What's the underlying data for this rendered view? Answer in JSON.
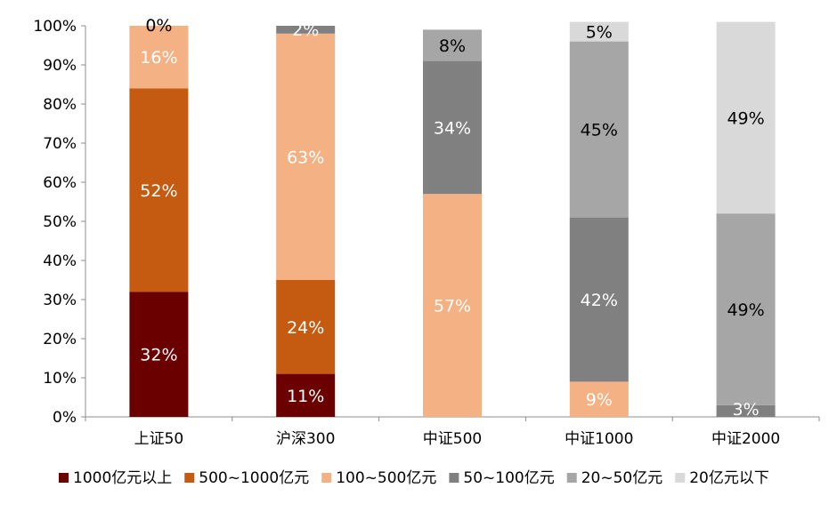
{
  "chart_data": {
    "type": "bar",
    "stacked": true,
    "percent": true,
    "categories": [
      "上证50",
      "沪深300",
      "中证500",
      "中证1000",
      "中证2000"
    ],
    "ylim": [
      0,
      100
    ],
    "yticks": [
      "0%",
      "10%",
      "20%",
      "30%",
      "40%",
      "50%",
      "60%",
      "70%",
      "80%",
      "90%",
      "100%"
    ],
    "grid": false,
    "legend_position": "bottom",
    "series": [
      {
        "name": "1000亿元以上",
        "color": "#6B0000",
        "label_color": "#ffffff",
        "values": [
          32,
          11,
          0,
          0,
          0
        ],
        "labels": [
          "32%",
          "11%",
          "",
          "",
          ""
        ]
      },
      {
        "name": "500~1000亿元",
        "color": "#C55A11",
        "label_color": "#ffffff",
        "values": [
          52,
          24,
          0,
          0,
          0
        ],
        "labels": [
          "52%",
          "24%",
          "",
          "",
          ""
        ]
      },
      {
        "name": "100~500亿元",
        "color": "#F4B183",
        "label_color": "#ffffff",
        "values": [
          16,
          63,
          57,
          9,
          0
        ],
        "labels": [
          "16%",
          "63%",
          "57%",
          "9%",
          ""
        ]
      },
      {
        "name": "50~100亿元",
        "color": "#808080",
        "label_color": "#ffffff",
        "values": [
          0,
          2,
          34,
          42,
          3
        ],
        "labels": [
          "",
          "2%",
          "34%",
          "42%",
          "3%"
        ]
      },
      {
        "name": "20~50亿元",
        "color": "#A6A6A6",
        "label_color": "#000000",
        "values": [
          0,
          0,
          8,
          45,
          49
        ],
        "labels": [
          "0%",
          "",
          "8%",
          "45%",
          "49%"
        ]
      },
      {
        "name": "20亿元以下",
        "color": "#D9D9D9",
        "label_color": "#000000",
        "values": [
          0,
          0,
          0,
          5,
          49
        ],
        "labels": [
          "",
          "",
          "",
          "5%",
          "49%"
        ]
      }
    ]
  }
}
